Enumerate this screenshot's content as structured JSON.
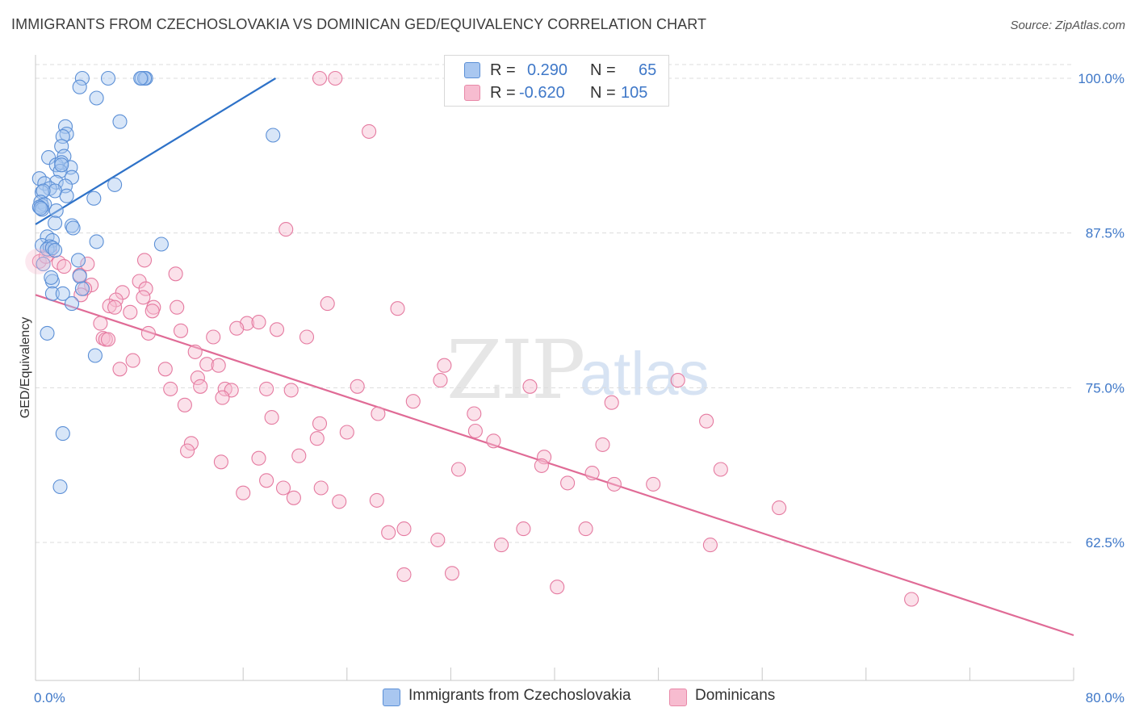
{
  "title": "IMMIGRANTS FROM CZECHOSLOVAKIA VS DOMINICAN GED/EQUIVALENCY CORRELATION CHART",
  "source": "Source: ZipAtlas.com",
  "watermark": {
    "zip": "ZIP",
    "atlas": "atlas"
  },
  "legend": {
    "rows": [
      {
        "r_label": "R =",
        "r_value": "0.290",
        "n_label": "N =",
        "n_value": "65",
        "color": "#a9c7f0",
        "border": "#5b8fd6"
      },
      {
        "r_label": "R =",
        "r_value": "-0.620",
        "n_label": "N =",
        "n_value": "105",
        "color": "#f7bcd0",
        "border": "#e889a8"
      }
    ]
  },
  "bottom_legend": [
    {
      "label": "Immigrants from Czechoslovakia",
      "color": "#a9c7f0",
      "border": "#5b8fd6"
    },
    {
      "label": "Dominicans",
      "color": "#f7bcd0",
      "border": "#e889a8"
    }
  ],
  "chart_data": {
    "type": "scatter",
    "title": "IMMIGRANTS FROM CZECHOSLOVAKIA VS DOMINICAN GED/EQUIVALENCY CORRELATION CHART",
    "xlabel": "",
    "ylabel": "GED/Equivalency",
    "xlim": [
      0,
      80
    ],
    "ylim": [
      50,
      101
    ],
    "x_tick_labels": [
      "0.0%",
      "80.0%"
    ],
    "y_ticks": [
      62.5,
      75.0,
      87.5,
      100.0
    ],
    "y_tick_labels": [
      "62.5%",
      "75.0%",
      "87.5%",
      "100.0%"
    ],
    "grid": "horizontal dashed",
    "legend_placement": "top-center",
    "series": [
      {
        "name": "Immigrants from Czechoslovakia",
        "color": "#5b8fd6",
        "fill": "#a9c7f0",
        "trend": {
          "x": [
            0,
            18.5
          ],
          "y": [
            88.2,
            100.0
          ]
        },
        "points": [
          [
            3.6,
            100
          ],
          [
            8.2,
            100
          ],
          [
            8.5,
            100
          ],
          [
            3.4,
            99.3
          ],
          [
            4.7,
            98.4
          ],
          [
            6.5,
            96.5
          ],
          [
            2.3,
            96.1
          ],
          [
            2.4,
            95.5
          ],
          [
            2.1,
            95.3
          ],
          [
            18.3,
            95.4
          ],
          [
            2.0,
            94.5
          ],
          [
            1.0,
            93.6
          ],
          [
            2.2,
            93.7
          ],
          [
            1.6,
            93.0
          ],
          [
            2.0,
            93.2
          ],
          [
            2.7,
            92.8
          ],
          [
            1.9,
            92.5
          ],
          [
            2.8,
            92.0
          ],
          [
            0.3,
            91.9
          ],
          [
            1.6,
            91.6
          ],
          [
            0.7,
            91.5
          ],
          [
            2.3,
            91.3
          ],
          [
            1.1,
            91.1
          ],
          [
            1.5,
            90.9
          ],
          [
            0.5,
            90.8
          ],
          [
            0.6,
            90.9
          ],
          [
            2.4,
            90.5
          ],
          [
            4.5,
            90.3
          ],
          [
            6.1,
            91.4
          ],
          [
            0.4,
            90.0
          ],
          [
            0.5,
            89.7
          ],
          [
            0.7,
            89.8
          ],
          [
            0.3,
            89.6
          ],
          [
            0.5,
            89.4
          ],
          [
            1.6,
            89.3
          ],
          [
            0.4,
            89.5
          ],
          [
            2.8,
            88.1
          ],
          [
            1.5,
            88.3
          ],
          [
            2.9,
            87.9
          ],
          [
            0.9,
            87.2
          ],
          [
            1.3,
            86.9
          ],
          [
            4.7,
            86.8
          ],
          [
            9.7,
            86.6
          ],
          [
            0.5,
            86.5
          ],
          [
            1.1,
            86.4
          ],
          [
            0.9,
            86.2
          ],
          [
            1.3,
            86.3
          ],
          [
            1.5,
            86.1
          ],
          [
            3.3,
            85.3
          ],
          [
            0.6,
            85.0
          ],
          [
            3.4,
            84.0
          ],
          [
            1.3,
            83.6
          ],
          [
            1.2,
            83.9
          ],
          [
            1.3,
            82.6
          ],
          [
            2.1,
            82.6
          ],
          [
            3.6,
            83.0
          ],
          [
            2.8,
            81.8
          ],
          [
            0.9,
            79.4
          ],
          [
            4.6,
            77.6
          ],
          [
            2.1,
            71.3
          ],
          [
            1.9,
            67.0
          ],
          [
            5.6,
            100
          ],
          [
            8.4,
            100
          ],
          [
            8.1,
            100
          ],
          [
            2.0,
            93.0
          ]
        ]
      },
      {
        "name": "Dominicans",
        "color": "#e57aa0",
        "fill": "#f7bcd0",
        "trend": {
          "x": [
            0,
            80
          ],
          "y": [
            82.5,
            55.0
          ]
        },
        "points": [
          [
            21.9,
            100
          ],
          [
            23.1,
            100
          ],
          [
            25.7,
            95.7
          ],
          [
            19.3,
            87.8
          ],
          [
            0.3,
            85.2
          ],
          [
            1.1,
            86.1
          ],
          [
            1.8,
            85.1
          ],
          [
            2.2,
            84.8
          ],
          [
            10.8,
            84.2
          ],
          [
            3.4,
            84.1
          ],
          [
            4.3,
            83.3
          ],
          [
            8.0,
            83.6
          ],
          [
            8.5,
            83.0
          ],
          [
            3.8,
            83.0
          ],
          [
            6.7,
            82.7
          ],
          [
            3.5,
            82.5
          ],
          [
            22.5,
            81.8
          ],
          [
            27.9,
            81.4
          ],
          [
            6.2,
            82.1
          ],
          [
            5.7,
            81.6
          ],
          [
            9.1,
            81.5
          ],
          [
            8.3,
            82.3
          ],
          [
            10.9,
            81.5
          ],
          [
            7.3,
            81.1
          ],
          [
            9.0,
            81.2
          ],
          [
            5.0,
            80.2
          ],
          [
            16.3,
            80.2
          ],
          [
            17.2,
            80.3
          ],
          [
            15.5,
            79.8
          ],
          [
            18.6,
            79.7
          ],
          [
            11.2,
            79.6
          ],
          [
            8.7,
            79.4
          ],
          [
            5.2,
            79.0
          ],
          [
            5.4,
            78.9
          ],
          [
            13.7,
            79.1
          ],
          [
            20.9,
            79.1
          ],
          [
            7.5,
            77.2
          ],
          [
            13.2,
            76.9
          ],
          [
            14.1,
            76.8
          ],
          [
            31.5,
            76.8
          ],
          [
            31.2,
            75.6
          ],
          [
            49.5,
            75.6
          ],
          [
            6.5,
            76.5
          ],
          [
            10.0,
            76.5
          ],
          [
            12.5,
            75.8
          ],
          [
            12.7,
            75.1
          ],
          [
            10.4,
            74.9
          ],
          [
            14.6,
            74.9
          ],
          [
            15.1,
            74.8
          ],
          [
            17.8,
            74.9
          ],
          [
            19.7,
            74.8
          ],
          [
            24.8,
            75.1
          ],
          [
            38.1,
            75.1
          ],
          [
            14.4,
            74.2
          ],
          [
            11.5,
            73.6
          ],
          [
            29.1,
            73.9
          ],
          [
            44.4,
            73.8
          ],
          [
            26.4,
            72.9
          ],
          [
            33.8,
            72.9
          ],
          [
            18.2,
            72.6
          ],
          [
            21.9,
            72.1
          ],
          [
            51.7,
            72.3
          ],
          [
            24.0,
            71.4
          ],
          [
            33.9,
            71.5
          ],
          [
            21.7,
            70.9
          ],
          [
            35.3,
            70.7
          ],
          [
            12.0,
            70.5
          ],
          [
            43.7,
            70.4
          ],
          [
            11.7,
            69.9
          ],
          [
            20.3,
            69.5
          ],
          [
            17.2,
            69.3
          ],
          [
            39.2,
            69.4
          ],
          [
            14.3,
            69.0
          ],
          [
            39.0,
            68.7
          ],
          [
            32.6,
            68.4
          ],
          [
            52.8,
            68.4
          ],
          [
            42.9,
            68.1
          ],
          [
            17.8,
            67.5
          ],
          [
            41.0,
            67.3
          ],
          [
            44.6,
            67.2
          ],
          [
            47.6,
            67.2
          ],
          [
            19.1,
            66.9
          ],
          [
            22.0,
            66.9
          ],
          [
            16.0,
            66.5
          ],
          [
            19.9,
            66.1
          ],
          [
            23.4,
            65.8
          ],
          [
            26.3,
            65.9
          ],
          [
            57.3,
            65.3
          ],
          [
            28.4,
            63.6
          ],
          [
            37.6,
            63.6
          ],
          [
            42.4,
            63.6
          ],
          [
            27.2,
            63.3
          ],
          [
            31.0,
            62.7
          ],
          [
            35.9,
            62.3
          ],
          [
            52.0,
            62.3
          ],
          [
            28.4,
            59.9
          ],
          [
            32.1,
            60.0
          ],
          [
            40.2,
            58.9
          ],
          [
            67.5,
            57.9
          ],
          [
            8.4,
            85.3
          ],
          [
            4.0,
            85.0
          ],
          [
            0.8,
            85.6
          ],
          [
            6.1,
            81.5
          ],
          [
            12.3,
            77.9
          ],
          [
            5.6,
            78.9
          ]
        ]
      }
    ]
  }
}
